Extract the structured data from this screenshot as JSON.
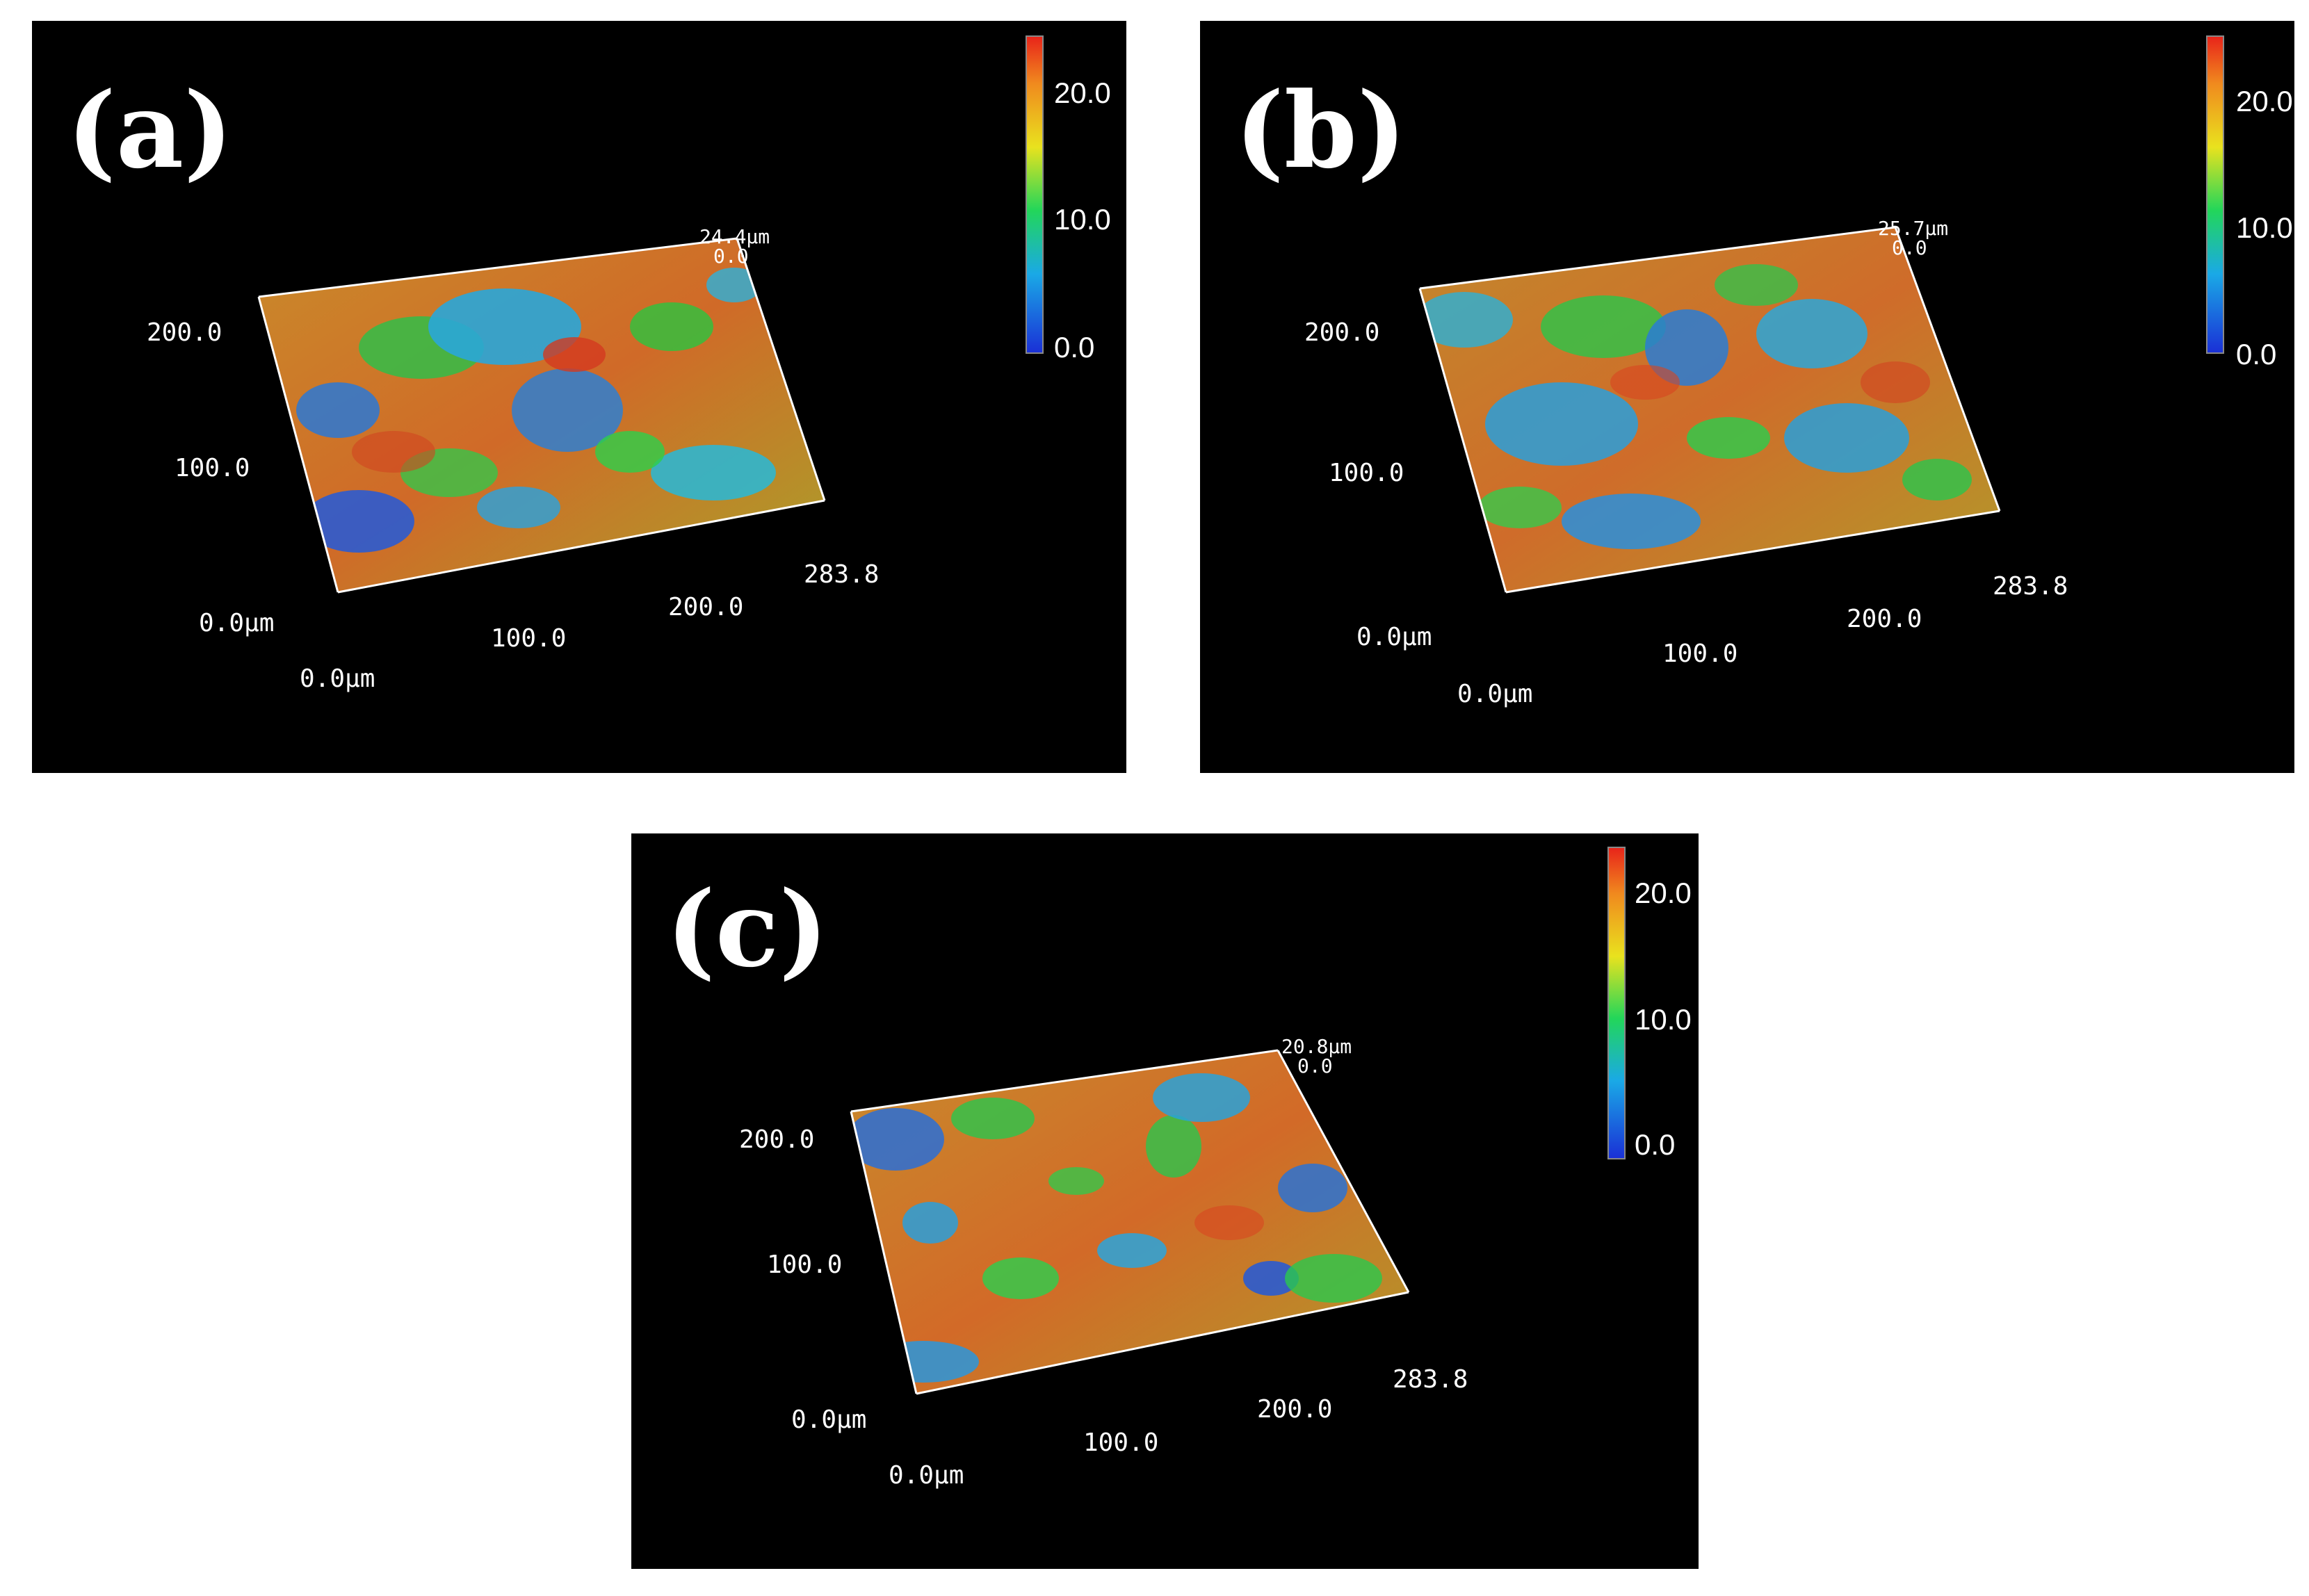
{
  "panels": [
    {
      "id": "a",
      "label": "(a)",
      "z_max_label": "24.4µm",
      "z_min_label": "0.0",
      "colorbar_ticks": [
        "20.0",
        "10.0",
        "0.0"
      ],
      "y_ticks": [
        "200.0",
        "100.0",
        "0.0µm"
      ],
      "x_ticks": [
        "0.0µm",
        "100.0",
        "200.0",
        "283.8"
      ]
    },
    {
      "id": "b",
      "label": "(b)",
      "z_max_label": "25.7µm",
      "z_min_label": "0.0",
      "colorbar_ticks": [
        "20.0",
        "10.0",
        "0.0"
      ],
      "y_ticks": [
        "200.0",
        "100.0",
        "0.0µm"
      ],
      "x_ticks": [
        "0.0µm",
        "100.0",
        "200.0",
        "283.8"
      ]
    },
    {
      "id": "c",
      "label": "(c)",
      "z_max_label": "20.8µm",
      "z_min_label": "0.0",
      "colorbar_ticks": [
        "20.0",
        "10.0",
        "0.0"
      ],
      "y_ticks": [
        "200.0",
        "100.0",
        "0.0µm"
      ],
      "x_ticks": [
        "0.0µm",
        "100.0",
        "200.0",
        "283.8"
      ]
    }
  ],
  "colorscale": [
    "#1a2fd6",
    "#1aa9e6",
    "#22d65a",
    "#e9e21e",
    "#f08a1e",
    "#e8231a"
  ]
}
